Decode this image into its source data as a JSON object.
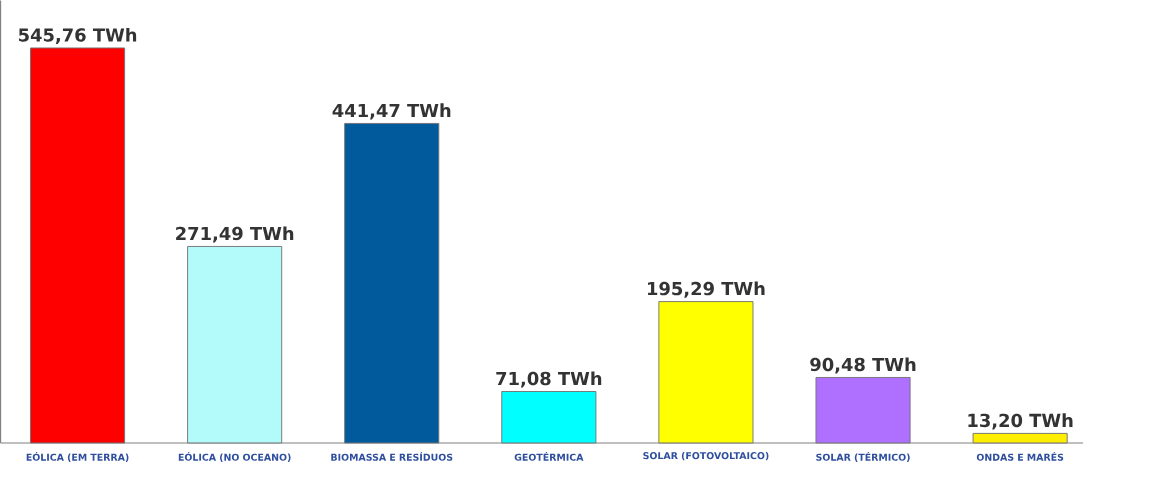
{
  "chart_data": {
    "type": "bar",
    "categories": [
      "EÓLICA (EM TERRA)",
      "EÓLICA (NO OCEANO)",
      "BIOMASSA E RESÍDUOS",
      "GEOTÉRMICA",
      "SOLAR (FOTOVOLTAICO)",
      "SOLAR (TÉRMICO)",
      "ONDAS E MARÉS"
    ],
    "values": [
      545.76,
      271.49,
      441.47,
      71.08,
      195.29,
      90.48,
      13.2
    ],
    "colors": [
      "#ff0000",
      "#b3fbfb",
      "#005a9c",
      "#00ffff",
      "#ffff00",
      "#b070ff",
      "#ffee00"
    ],
    "value_labels": [
      "545,76 TWh",
      "271,49 TWh",
      "441,47 TWh",
      "71,08 TWh",
      "195,29 TWh",
      "90,48 TWh",
      "13,20 TWh"
    ]
  }
}
